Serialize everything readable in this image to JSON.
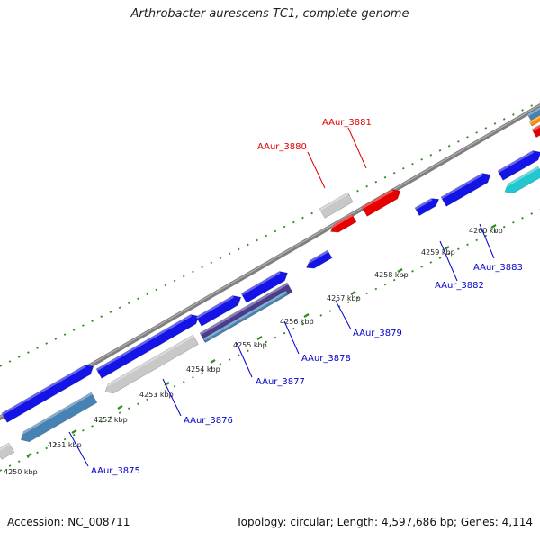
{
  "title": "Arthrobacter aurescens TC1, complete genome",
  "footer": {
    "accession": "Accession: NC_008711",
    "summary": "Topology: circular; Length: 4,597,686 bp; Genes: 4,114"
  },
  "ticks": [
    {
      "label": "4250 kbp"
    },
    {
      "label": "4251 kbp"
    },
    {
      "label": "4252 kbp"
    },
    {
      "label": "4253 kbp"
    },
    {
      "label": "4254 kbp"
    },
    {
      "label": "4255 kbp"
    },
    {
      "label": "4256 kbp"
    },
    {
      "label": "4257 kbp"
    },
    {
      "label": "4258 kbp"
    },
    {
      "label": "4259 kbp"
    },
    {
      "label": "4260 kbp"
    }
  ],
  "gene_labels": [
    {
      "name": "AAur_3875",
      "color": "#0000cc"
    },
    {
      "name": "AAur_3876",
      "color": "#0000cc"
    },
    {
      "name": "AAur_3877",
      "color": "#0000cc"
    },
    {
      "name": "AAur_3878",
      "color": "#0000cc"
    },
    {
      "name": "AAur_3879",
      "color": "#0000cc"
    },
    {
      "name": "AAur_3880",
      "color": "#e00000"
    },
    {
      "name": "AAur_3881",
      "color": "#e00000"
    },
    {
      "name": "AAur_3882",
      "color": "#0000cc"
    },
    {
      "name": "AAur_3883",
      "color": "#0000cc"
    }
  ],
  "colors": {
    "backbone": "#808080",
    "tick": "#2e8b1e",
    "gene_blue": "#1414e6",
    "gene_gray": "#c8c8c8",
    "gene_red": "#e60000",
    "gene_steel": "#4682b4",
    "gene_cyan": "#20c8d0",
    "gene_purple": "#4b3c8c",
    "gene_orange": "#ff8c00",
    "label_line_blue": "#0000cc",
    "label_line_red": "#e00000"
  }
}
